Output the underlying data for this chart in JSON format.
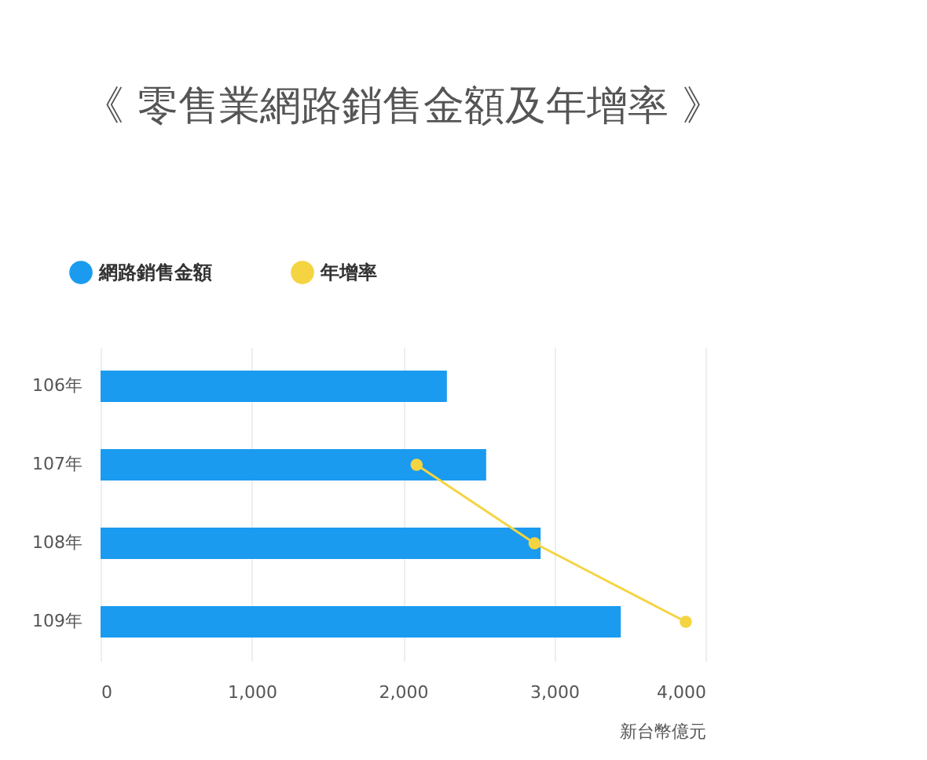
{
  "chart_data": {
    "type": "bar",
    "orientation": "horizontal",
    "title": "《 零售業網路銷售金額及年增率 》",
    "xlabel": "新台幣億元",
    "categories": [
      "106年",
      "107年",
      "108年",
      "109年"
    ],
    "series": [
      {
        "name": "網路銷售金額",
        "color": "#1a9bf0",
        "values": [
          2290,
          2550,
          2910,
          3440
        ]
      },
      {
        "name": "年增率",
        "type": "line",
        "color": "#f5d442",
        "marker": "circle",
        "values": [
          null,
          2090,
          2870,
          3870
        ]
      }
    ],
    "xlim": [
      0,
      4000
    ],
    "xticks": [
      0,
      {
        "value": 1000,
        "label": "1,000"
      },
      {
        "value": 2000,
        "label": "2,000"
      },
      {
        "value": 3000,
        "label": "3,000"
      },
      {
        "value": 4000,
        "label": "4,000"
      }
    ],
    "grid": "x",
    "legend": "top left"
  }
}
